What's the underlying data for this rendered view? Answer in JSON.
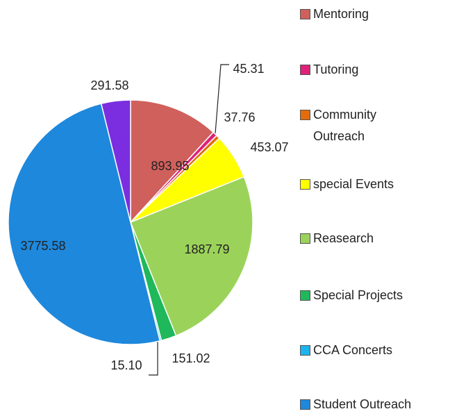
{
  "chart_data": {
    "type": "pie",
    "categories": [
      "Mentoring",
      "Tutoring",
      "Community Outreach",
      "special Events",
      "Reasearch",
      "Special Projects",
      "CCA Concerts",
      "Student Outreach",
      null
    ],
    "values": [
      893.95,
      45.31,
      37.76,
      453.07,
      1887.79,
      151.02,
      15.1,
      3775.58,
      291.58
    ],
    "value_labels": [
      "893.95",
      "45.31",
      "37.76",
      "453.07",
      "1887.79",
      "151.02",
      "15.10",
      "3775.58",
      "291.58"
    ],
    "colors": [
      "#d0605c",
      "#e0207a",
      "#e46c0a",
      "#ffff00",
      "#9bd35a",
      "#1fb85a",
      "#1ab4ee",
      "#1e88dc",
      "#7a2ee0"
    ],
    "legend": "right"
  }
}
